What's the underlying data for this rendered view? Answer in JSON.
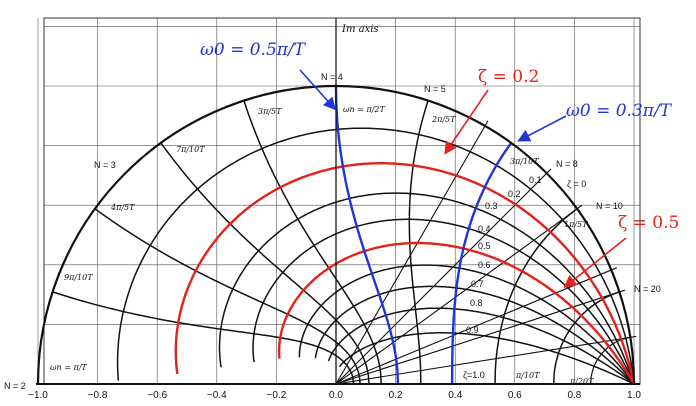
{
  "axis": {
    "im_label": "Im axis",
    "x_ticks": [
      "−1.0",
      "−0.8",
      "−0.6",
      "−0.4",
      "−0.2",
      "0.0",
      "0.2",
      "0.4",
      "0.6",
      "0.8",
      "1.0"
    ],
    "xlim": [
      -1.0,
      1.0
    ]
  },
  "n_labels": [
    "N = 2",
    "N = 3",
    "N = 4",
    "N = 5",
    "N = 8",
    "N = 10",
    "N = 20"
  ],
  "zeta_labels": [
    "ζ = 0",
    "0.1",
    "0.2",
    "0.3",
    "0.4",
    "0.5",
    "0.6",
    "0.7",
    "0.8",
    "0.9",
    "ζ=1.0"
  ],
  "freq_labels": {
    "wn_pi_T": "ωn = π/T",
    "wn_pi_2T": "ωn = π/2T",
    "pi_10T": "π/10T",
    "pi_20T": "π/20T",
    "three_pi_10T": "3π/10T",
    "two_pi_5T": "2π/5T",
    "three_pi_5T": "3π/5T",
    "seven_pi_10T": "7π/10T",
    "four_pi_5T": "4π/5T",
    "nine_pi_10T": "9π/10T",
    "one_pi_5T": "1π/5T"
  },
  "annotations": {
    "w0_half": "ω0 = 0.5π/T",
    "zeta_02": "ζ = 0.2",
    "w0_03": "ω0 = 0.3π/T",
    "zeta_05": "ζ = 0.5"
  },
  "colors": {
    "highlight_freq": "#1f35d6",
    "highlight_zeta": "#e3221b",
    "grid": "#111111"
  },
  "chart_data": {
    "type": "z-plane damping/frequency grid",
    "xlim": [
      -1.0,
      1.0
    ],
    "zeta_values": [
      0,
      0.1,
      0.2,
      0.3,
      0.4,
      0.5,
      0.6,
      0.7,
      0.8,
      0.9,
      1.0
    ],
    "highlighted": {
      "zeta": [
        0.2,
        0.5
      ],
      "w0": [
        "0.5π/T",
        "0.3π/T"
      ]
    }
  }
}
